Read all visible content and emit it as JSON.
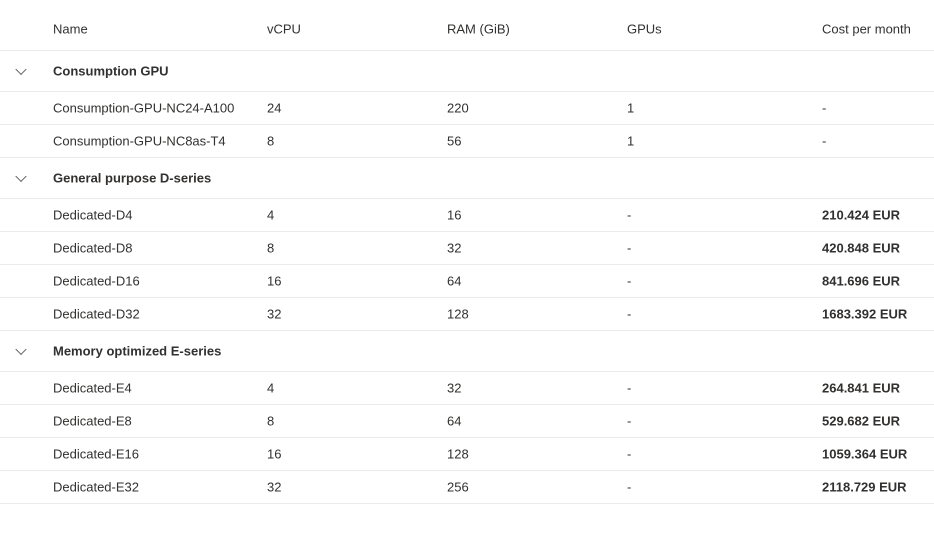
{
  "columns": [
    "Name",
    "vCPU",
    "RAM (GiB)",
    "GPUs",
    "Cost per month"
  ],
  "groups": [
    {
      "name": "Consumption GPU",
      "rows": [
        [
          "Consumption-GPU-NC24-A100",
          "24",
          "220",
          "1",
          "-"
        ],
        [
          "Consumption-GPU-NC8as-T4",
          "8",
          "56",
          "1",
          "-"
        ]
      ]
    },
    {
      "name": "General purpose D-series",
      "rows": [
        [
          "Dedicated-D4",
          "4",
          "16",
          "-",
          "210.424 EUR"
        ],
        [
          "Dedicated-D8",
          "8",
          "32",
          "-",
          "420.848 EUR"
        ],
        [
          "Dedicated-D16",
          "16",
          "64",
          "-",
          "841.696 EUR"
        ],
        [
          "Dedicated-D32",
          "32",
          "128",
          "-",
          "1683.392 EUR"
        ]
      ]
    },
    {
      "name": "Memory optimized E-series",
      "rows": [
        [
          "Dedicated-E4",
          "4",
          "32",
          "-",
          "264.841 EUR"
        ],
        [
          "Dedicated-E8",
          "8",
          "64",
          "-",
          "529.682 EUR"
        ],
        [
          "Dedicated-E16",
          "16",
          "128",
          "-",
          "1059.364 EUR"
        ],
        [
          "Dedicated-E32",
          "32",
          "256",
          "-",
          "2118.729 EUR"
        ]
      ]
    }
  ]
}
